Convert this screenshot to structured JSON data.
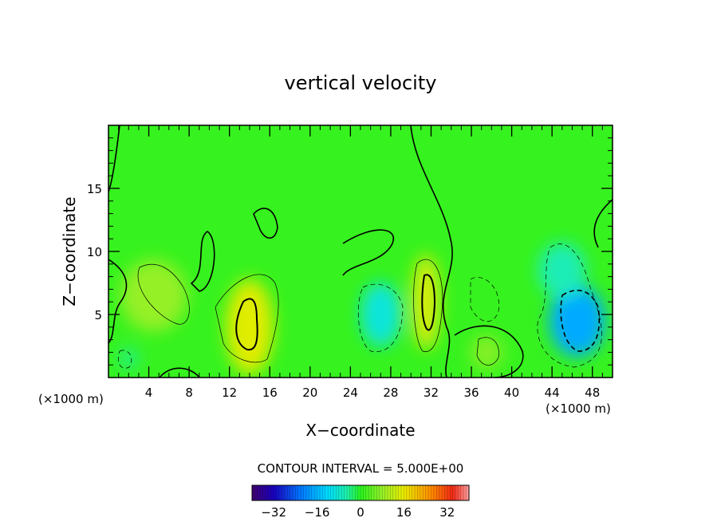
{
  "chart_data": {
    "type": "heatmap",
    "title": "vertical velocity",
    "xlabel": "X−coordinate",
    "ylabel": "Z−coordinate",
    "x_unit_left": "(×1000 m)",
    "x_unit_right": "(×1000 m)",
    "xlim": [
      0,
      50
    ],
    "ylim": [
      0,
      20
    ],
    "x_ticks": [
      4,
      8,
      12,
      16,
      20,
      24,
      28,
      32,
      36,
      40,
      44,
      48
    ],
    "x_tick_labels": [
      "4",
      "8",
      "12",
      "16",
      "20",
      "24",
      "28",
      "32",
      "36",
      "40",
      "44",
      "48"
    ],
    "y_ticks": [
      5,
      10,
      15
    ],
    "y_tick_labels": [
      "5",
      "10",
      "15"
    ],
    "contour_interval_label": "CONTOUR INTERVAL = 5.000E+00",
    "colorbar": {
      "range": [
        -40,
        40
      ],
      "ticks": [
        -32,
        -16,
        0,
        16,
        32
      ],
      "tick_labels": [
        "−32",
        "−16",
        "0",
        "16",
        "32"
      ]
    },
    "features": [
      {
        "x": 4.5,
        "z": 6.5,
        "value": 8
      },
      {
        "x": 14,
        "z": 4.0,
        "value": 15
      },
      {
        "x": 31.5,
        "z": 6.0,
        "value": 14
      },
      {
        "x": 37.5,
        "z": 2.0,
        "value": 7
      },
      {
        "x": 27,
        "z": 5.0,
        "value": -9
      },
      {
        "x": 46.5,
        "z": 4.5,
        "value": -17
      },
      {
        "x": 45,
        "z": 8.5,
        "value": -6
      },
      {
        "x": 2,
        "z": 1.5,
        "value": -4
      }
    ],
    "background_value": 1
  }
}
